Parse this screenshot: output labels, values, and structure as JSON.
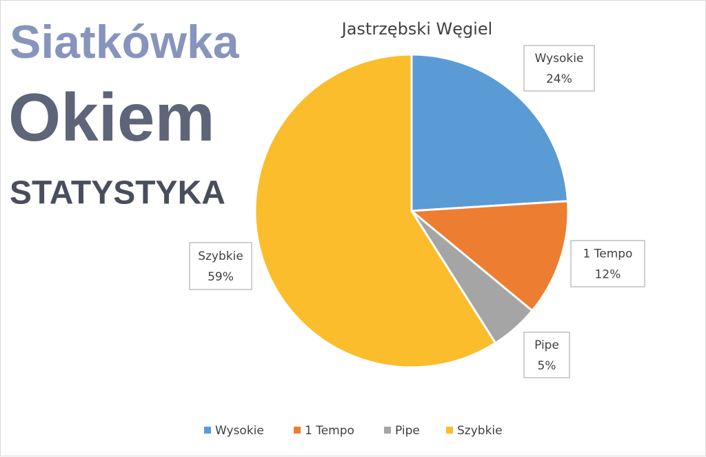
{
  "logo": {
    "line1": "Siatkówka",
    "line2": "Okiem",
    "line3": "STATYSTYKA"
  },
  "chart_data": {
    "type": "pie",
    "title": "Jastrzębski Węgiel",
    "categories": [
      "Wysokie",
      "1 Tempo",
      "Pipe",
      "Szybkie"
    ],
    "values": [
      24,
      12,
      5,
      59
    ],
    "value_labels": [
      "24%",
      "12%",
      "5%",
      "59%"
    ],
    "colors": [
      "#5b9bd5",
      "#ed7d31",
      "#a5a5a5",
      "#fbbd2c"
    ],
    "legend": "bottom"
  }
}
